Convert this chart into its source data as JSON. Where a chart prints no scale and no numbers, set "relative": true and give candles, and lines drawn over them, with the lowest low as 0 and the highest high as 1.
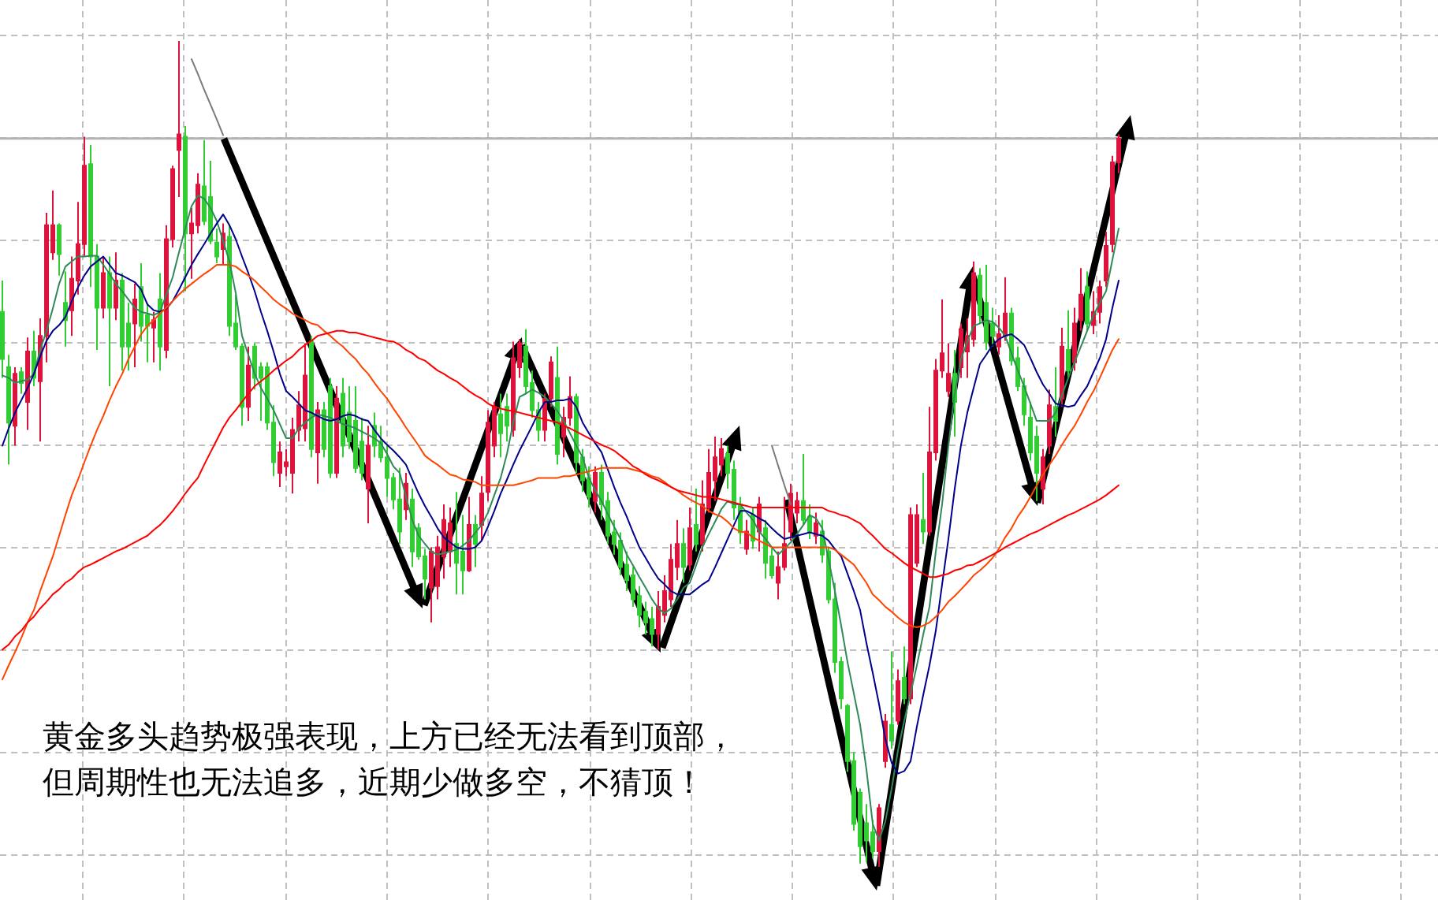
{
  "chart_data": {
    "type": "candlestick",
    "relative": true,
    "grid": true,
    "categories": [
      null,
      null,
      null,
      null,
      null,
      null,
      null,
      null,
      null,
      null,
      null,
      null,
      null,
      null,
      null,
      null,
      null,
      null,
      null,
      null,
      null,
      null,
      null,
      null,
      null,
      null,
      null,
      null,
      null,
      null,
      null,
      null,
      null,
      null,
      null,
      null,
      null,
      null,
      null,
      null,
      null,
      null,
      null,
      null,
      null,
      null,
      null,
      null,
      null,
      null,
      null,
      null,
      null,
      null,
      null,
      null,
      null,
      null,
      null,
      null,
      null,
      null,
      null,
      null,
      null,
      null,
      null,
      null,
      null,
      null,
      null,
      null,
      null,
      null,
      null,
      null,
      null,
      null,
      null,
      null,
      null,
      null,
      null,
      null,
      null,
      null,
      null,
      null,
      null,
      null,
      null,
      null,
      null,
      null,
      null,
      null,
      null,
      null,
      null,
      null,
      null,
      null,
      null,
      null,
      null,
      null,
      null,
      null,
      null,
      null,
      null,
      null,
      null,
      null,
      null,
      null,
      null,
      null,
      null,
      null,
      null,
      null,
      null,
      null,
      null,
      null,
      null,
      null,
      null,
      null,
      null,
      null,
      null,
      null,
      null,
      null,
      null,
      null,
      null,
      null,
      null,
      null,
      null,
      null,
      null,
      null,
      null,
      null,
      null,
      null,
      null,
      null,
      null,
      null,
      null,
      null,
      null,
      null,
      null,
      null,
      null,
      null,
      null,
      null,
      null,
      null,
      null,
      null,
      null,
      null,
      null,
      null,
      null,
      null,
      null,
      null,
      null,
      null
    ],
    "ohlc": [
      [
        0.672,
        0.71,
        0.592,
        0.615
      ],
      [
        0.605,
        0.62,
        0.487,
        0.538
      ],
      [
        0.534,
        0.605,
        0.51,
        0.597
      ],
      [
        0.599,
        0.605,
        0.573,
        0.586
      ],
      [
        0.563,
        0.641,
        0.529,
        0.624
      ],
      [
        0.624,
        0.649,
        0.582,
        0.592
      ],
      [
        0.588,
        0.664,
        0.515,
        0.643
      ],
      [
        0.643,
        0.792,
        0.611,
        0.777
      ],
      [
        0.744,
        0.819,
        0.735,
        0.777
      ],
      [
        0.777,
        0.779,
        0.716,
        0.742
      ],
      [
        0.683,
        0.721,
        0.63,
        0.662
      ],
      [
        0.674,
        0.739,
        0.643,
        0.712
      ],
      [
        0.71,
        0.805,
        0.693,
        0.754
      ],
      [
        0.754,
        0.884,
        0.739,
        0.849
      ],
      [
        0.851,
        0.874,
        0.702,
        0.739
      ],
      [
        0.739,
        0.754,
        0.626,
        0.677
      ],
      [
        0.677,
        0.739,
        0.664,
        0.719
      ],
      [
        0.719,
        0.739,
        0.582,
        0.677
      ],
      [
        0.677,
        0.744,
        0.662,
        0.71
      ],
      [
        0.71,
        0.719,
        0.601,
        0.63
      ],
      [
        0.658,
        0.683,
        0.601,
        0.63
      ],
      [
        0.658,
        0.706,
        0.605,
        0.687
      ],
      [
        0.702,
        0.731,
        0.636,
        0.655
      ],
      [
        0.668,
        0.683,
        0.611,
        0.655
      ],
      [
        0.653,
        0.672,
        0.611,
        0.662
      ],
      [
        0.687,
        0.719,
        0.601,
        0.63
      ],
      [
        0.626,
        0.777,
        0.616,
        0.76
      ],
      [
        0.76,
        0.849,
        0.75,
        0.845
      ],
      [
        0.868,
        1.0,
        0.811,
        0.887
      ],
      [
        0.884,
        0.897,
        0.697,
        0.767
      ],
      [
        0.767,
        0.798,
        0.712,
        0.779
      ],
      [
        0.777,
        0.84,
        0.767,
        0.826
      ],
      [
        0.824,
        0.88,
        0.777,
        0.782
      ],
      [
        0.811,
        0.855,
        0.754,
        0.758
      ],
      [
        0.756,
        0.773,
        0.731,
        0.739
      ],
      [
        0.748,
        0.779,
        0.729,
        0.767
      ],
      [
        0.763,
        0.777,
        0.643,
        0.655
      ],
      [
        0.658,
        0.693,
        0.626,
        0.63
      ],
      [
        0.63,
        0.634,
        0.534,
        0.557
      ],
      [
        0.557,
        0.63,
        0.54,
        0.607
      ],
      [
        0.63,
        0.634,
        0.578,
        0.592
      ],
      [
        0.605,
        0.611,
        0.54,
        0.592
      ],
      [
        0.605,
        0.611,
        0.529,
        0.538
      ],
      [
        0.538,
        0.559,
        0.473,
        0.49
      ],
      [
        0.477,
        0.515,
        0.46,
        0.502
      ],
      [
        0.485,
        0.506,
        0.473,
        0.49
      ],
      [
        0.477,
        0.544,
        0.452,
        0.529
      ],
      [
        0.529,
        0.576,
        0.515,
        0.559
      ],
      [
        0.531,
        0.634,
        0.515,
        0.595
      ],
      [
        0.636,
        0.643,
        0.496,
        0.506
      ],
      [
        0.502,
        0.563,
        0.464,
        0.553
      ],
      [
        0.553,
        0.563,
        0.496,
        0.506
      ],
      [
        0.582,
        0.592,
        0.471,
        0.477
      ],
      [
        0.477,
        0.582,
        0.471,
        0.567
      ],
      [
        0.573,
        0.592,
        0.496,
        0.51
      ],
      [
        0.55,
        0.582,
        0.506,
        0.515
      ],
      [
        0.54,
        0.582,
        0.477,
        0.483
      ],
      [
        0.515,
        0.544,
        0.468,
        0.477
      ],
      [
        0.458,
        0.534,
        0.416,
        0.51
      ],
      [
        0.534,
        0.55,
        0.496,
        0.51
      ],
      [
        0.515,
        0.534,
        0.49,
        0.496
      ],
      [
        0.496,
        0.51,
        0.448,
        0.471
      ],
      [
        0.471,
        0.477,
        0.433,
        0.445
      ],
      [
        0.445,
        0.483,
        0.391,
        0.406
      ],
      [
        0.433,
        0.477,
        0.42,
        0.464
      ],
      [
        0.445,
        0.458,
        0.363,
        0.382
      ],
      [
        0.41,
        0.416,
        0.372,
        0.376
      ],
      [
        0.376,
        0.385,
        0.324,
        0.349
      ],
      [
        0.338,
        0.387,
        0.296,
        0.382
      ],
      [
        0.34,
        0.401,
        0.324,
        0.387
      ],
      [
        0.376,
        0.439,
        0.349,
        0.42
      ],
      [
        0.382,
        0.435,
        0.363,
        0.416
      ],
      [
        0.391,
        0.454,
        0.33,
        0.368
      ],
      [
        0.382,
        0.426,
        0.33,
        0.359
      ],
      [
        0.359,
        0.448,
        0.357,
        0.414
      ],
      [
        0.414,
        0.426,
        0.363,
        0.391
      ],
      [
        0.414,
        0.473,
        0.395,
        0.452
      ],
      [
        0.454,
        0.553,
        0.443,
        0.538
      ],
      [
        0.51,
        0.563,
        0.496,
        0.557
      ],
      [
        0.548,
        0.573,
        0.496,
        0.525
      ],
      [
        0.557,
        0.573,
        0.515,
        0.534
      ],
      [
        0.529,
        0.636,
        0.521,
        0.616
      ],
      [
        0.605,
        0.639,
        0.592,
        0.634
      ],
      [
        0.63,
        0.651,
        0.573,
        0.582
      ],
      [
        0.586,
        0.601,
        0.544,
        0.553
      ],
      [
        0.553,
        0.563,
        0.515,
        0.529
      ],
      [
        0.529,
        0.573,
        0.515,
        0.567
      ],
      [
        0.567,
        0.618,
        0.557,
        0.611
      ],
      [
        0.592,
        0.63,
        0.487,
        0.5
      ],
      [
        0.521,
        0.557,
        0.496,
        0.544
      ],
      [
        0.544,
        0.594,
        0.534,
        0.569
      ],
      [
        0.569,
        0.573,
        0.477,
        0.49
      ],
      [
        0.496,
        0.506,
        0.454,
        0.468
      ],
      [
        0.471,
        0.485,
        0.435,
        0.448
      ],
      [
        0.443,
        0.485,
        0.429,
        0.477
      ],
      [
        0.477,
        0.487,
        0.42,
        0.439
      ],
      [
        0.443,
        0.454,
        0.391,
        0.401
      ],
      [
        0.405,
        0.42,
        0.378,
        0.391
      ],
      [
        0.395,
        0.405,
        0.353,
        0.363
      ],
      [
        0.366,
        0.382,
        0.334,
        0.347
      ],
      [
        0.353,
        0.363,
        0.315,
        0.324
      ],
      [
        0.328,
        0.34,
        0.29,
        0.305
      ],
      [
        0.309,
        0.321,
        0.281,
        0.296
      ],
      [
        0.3,
        0.315,
        0.267,
        0.282
      ],
      [
        0.282,
        0.334,
        0.263,
        0.315
      ],
      [
        0.305,
        0.353,
        0.296,
        0.334
      ],
      [
        0.324,
        0.391,
        0.315,
        0.372
      ],
      [
        0.363,
        0.42,
        0.347,
        0.391
      ],
      [
        0.391,
        0.41,
        0.344,
        0.363
      ],
      [
        0.366,
        0.435,
        0.359,
        0.41
      ],
      [
        0.414,
        0.458,
        0.382,
        0.391
      ],
      [
        0.391,
        0.468,
        0.382,
        0.439
      ],
      [
        0.435,
        0.506,
        0.429,
        0.477
      ],
      [
        0.468,
        0.521,
        0.443,
        0.496
      ],
      [
        0.487,
        0.519,
        0.473,
        0.506
      ],
      [
        0.5,
        0.51,
        0.458,
        0.477
      ],
      [
        0.481,
        0.492,
        0.42,
        0.435
      ],
      [
        0.439,
        0.448,
        0.391,
        0.405
      ],
      [
        0.385,
        0.42,
        0.378,
        0.406
      ],
      [
        0.426,
        0.435,
        0.385,
        0.395
      ],
      [
        0.406,
        0.448,
        0.382,
        0.439
      ],
      [
        0.41,
        0.42,
        0.349,
        0.368
      ],
      [
        0.376,
        0.387,
        0.349,
        0.353
      ],
      [
        0.344,
        0.382,
        0.324,
        0.363
      ],
      [
        0.363,
        0.448,
        0.359,
        0.391
      ],
      [
        0.406,
        0.464,
        0.395,
        0.452
      ],
      [
        0.429,
        0.454,
        0.416,
        0.443
      ],
      [
        0.443,
        0.5,
        0.414,
        0.42
      ],
      [
        0.424,
        0.439,
        0.397,
        0.406
      ],
      [
        0.401,
        0.429,
        0.391,
        0.416
      ],
      [
        0.406,
        0.42,
        0.368,
        0.378
      ],
      [
        0.382,
        0.387,
        0.319,
        0.324
      ],
      [
        0.324,
        0.344,
        0.235,
        0.248
      ],
      [
        0.248,
        0.254,
        0.191,
        0.204
      ],
      [
        0.195,
        0.197,
        0.115,
        0.128
      ],
      [
        0.128,
        0.139,
        0.044,
        0.052
      ],
      [
        0.09,
        0.095,
        0.004,
        0.025
      ],
      [
        0.053,
        0.076,
        0.006,
        0.032
      ],
      [
        0.042,
        0.057,
        0.01,
        0.019
      ],
      [
        0.019,
        0.076,
        0.0,
        0.071
      ],
      [
        0.128,
        0.185,
        0.12,
        0.176
      ],
      [
        0.172,
        0.261,
        0.143,
        0.153
      ],
      [
        0.177,
        0.239,
        0.172,
        0.225
      ],
      [
        0.229,
        0.267,
        0.197,
        0.204
      ],
      [
        0.204,
        0.435,
        0.197,
        0.426
      ],
      [
        0.368,
        0.439,
        0.363,
        0.426
      ],
      [
        0.42,
        0.477,
        0.391,
        0.406
      ],
      [
        0.406,
        0.557,
        0.401,
        0.502
      ],
      [
        0.502,
        0.615,
        0.492,
        0.601
      ],
      [
        0.601,
        0.687,
        0.592,
        0.622
      ],
      [
        0.576,
        0.634,
        0.569,
        0.597
      ],
      [
        0.597,
        0.626,
        0.521,
        0.563
      ],
      [
        0.605,
        0.658,
        0.592,
        0.651
      ],
      [
        0.624,
        0.664,
        0.592,
        0.643
      ],
      [
        0.639,
        0.733,
        0.63,
        0.719
      ],
      [
        0.716,
        0.725,
        0.658,
        0.668
      ],
      [
        0.683,
        0.729,
        0.626,
        0.636
      ],
      [
        0.658,
        0.677,
        0.63,
        0.643
      ],
      [
        0.63,
        0.668,
        0.62,
        0.645
      ],
      [
        0.643,
        0.714,
        0.637,
        0.67
      ],
      [
        0.67,
        0.677,
        0.607,
        0.613
      ],
      [
        0.616,
        0.63,
        0.576,
        0.582
      ],
      [
        0.582,
        0.592,
        0.534,
        0.548
      ],
      [
        0.544,
        0.563,
        0.492,
        0.502
      ],
      [
        0.521,
        0.534,
        0.443,
        0.477
      ],
      [
        0.458,
        0.506,
        0.439,
        0.496
      ],
      [
        0.51,
        0.578,
        0.5,
        0.559
      ],
      [
        0.557,
        0.605,
        0.521,
        0.54
      ],
      [
        0.567,
        0.653,
        0.557,
        0.63
      ],
      [
        0.626,
        0.674,
        0.592,
        0.601
      ],
      [
        0.611,
        0.677,
        0.601,
        0.658
      ],
      [
        0.662,
        0.725,
        0.649,
        0.693
      ],
      [
        0.702,
        0.721,
        0.649,
        0.658
      ],
      [
        0.656,
        0.697,
        0.645,
        0.672
      ],
      [
        0.672,
        0.71,
        0.658,
        0.702
      ],
      [
        0.71,
        0.769,
        0.702,
        0.752
      ],
      [
        0.754,
        0.861,
        0.744,
        0.853
      ],
      [
        0.853,
        0.887,
        0.84,
        0.882
      ]
    ],
    "colors": [
      "#32cd32",
      "#32cd32",
      "#dc143c",
      "#32cd32",
      "#dc143c",
      "#32cd32",
      "#dc143c",
      "#dc143c",
      "#dc143c",
      "#32cd32",
      "#32cd32",
      "#dc143c",
      "#dc143c",
      "#dc143c",
      "#32cd32",
      "#32cd32",
      "#dc143c",
      "#32cd32",
      "#dc143c",
      "#32cd32",
      "#32cd32",
      "#dc143c",
      "#32cd32",
      "#32cd32",
      "#dc143c",
      "#32cd32",
      "#dc143c",
      "#dc143c",
      "#dc143c",
      "#32cd32",
      "#dc143c",
      "#dc143c",
      "#32cd32",
      "#32cd32",
      "#32cd32",
      "#dc143c",
      "#32cd32",
      "#32cd32",
      "#32cd32",
      "#dc143c",
      "#32cd32",
      "#32cd32",
      "#32cd32",
      "#32cd32",
      "#dc143c",
      "#dc143c",
      "#dc143c",
      "#dc143c",
      "#dc143c",
      "#32cd32",
      "#dc143c",
      "#32cd32",
      "#32cd32",
      "#dc143c",
      "#32cd32",
      "#32cd32",
      "#32cd32",
      "#32cd32",
      "#dc143c",
      "#32cd32",
      "#32cd32",
      "#32cd32",
      "#32cd32",
      "#32cd32",
      "#dc143c",
      "#32cd32",
      "#32cd32",
      "#32cd32",
      "#dc143c",
      "#dc143c",
      "#dc143c",
      "#dc143c",
      "#32cd32",
      "#32cd32",
      "#dc143c",
      "#32cd32",
      "#dc143c",
      "#dc143c",
      "#dc143c",
      "#32cd32",
      "#32cd32",
      "#dc143c",
      "#dc143c",
      "#32cd32",
      "#32cd32",
      "#32cd32",
      "#dc143c",
      "#dc143c",
      "#32cd32",
      "#dc143c",
      "#dc143c",
      "#32cd32",
      "#32cd32",
      "#32cd32",
      "#dc143c",
      "#32cd32",
      "#32cd32",
      "#32cd32",
      "#32cd32",
      "#32cd32",
      "#32cd32",
      "#32cd32",
      "#32cd32",
      "#32cd32",
      "#dc143c",
      "#dc143c",
      "#dc143c",
      "#dc143c",
      "#32cd32",
      "#dc143c",
      "#32cd32",
      "#dc143c",
      "#dc143c",
      "#dc143c",
      "#dc143c",
      "#32cd32",
      "#32cd32",
      "#32cd32",
      "#dc143c",
      "#32cd32",
      "#dc143c",
      "#32cd32",
      "#32cd32",
      "#dc143c",
      "#dc143c",
      "#dc143c",
      "#dc143c",
      "#32cd32",
      "#32cd32",
      "#dc143c",
      "#32cd32",
      "#32cd32",
      "#32cd32",
      "#32cd32",
      "#32cd32",
      "#32cd32",
      "#32cd32",
      "#32cd32",
      "#32cd32",
      "#dc143c",
      "#dc143c",
      "#32cd32",
      "#dc143c",
      "#32cd32",
      "#dc143c",
      "#dc143c",
      "#32cd32",
      "#dc143c",
      "#dc143c",
      "#dc143c",
      "#dc143c",
      "#32cd32",
      "#dc143c",
      "#dc143c",
      "#dc143c",
      "#32cd32",
      "#32cd32",
      "#32cd32",
      "#dc143c",
      "#dc143c",
      "#32cd32",
      "#32cd32",
      "#32cd32",
      "#32cd32",
      "#32cd32",
      "#dc143c",
      "#dc143c",
      "#32cd32",
      "#dc143c",
      "#32cd32",
      "#dc143c",
      "#dc143c",
      "#32cd32",
      "#dc143c",
      "#dc143c",
      "#dc143c",
      "#dc143c",
      "#dc143c"
    ],
    "series": [
      {
        "type": "line",
        "color": "#2e8b57",
        "values": [
          0.595,
          0.592,
          0.586,
          0.588,
          0.59,
          0.597,
          0.626,
          0.649,
          0.676,
          0.706,
          0.727,
          0.733,
          0.739,
          0.739,
          0.74,
          0.74,
          0.729,
          0.718,
          0.706,
          0.697,
          0.687,
          0.677,
          0.672,
          0.67,
          0.668,
          0.672,
          0.693,
          0.714,
          0.744,
          0.773,
          0.8,
          0.813,
          0.809,
          0.798,
          0.782,
          0.758,
          0.733,
          0.695,
          0.643,
          0.62,
          0.597,
          0.58,
          0.567,
          0.553,
          0.536,
          0.519,
          0.519,
          0.531,
          0.538,
          0.544,
          0.548,
          0.546,
          0.544,
          0.54,
          0.536,
          0.534,
          0.531,
          0.527,
          0.523,
          0.519,
          0.513,
          0.5,
          0.485,
          0.477,
          0.448,
          0.42,
          0.401,
          0.391,
          0.382,
          0.378,
          0.38,
          0.382,
          0.384,
          0.389,
          0.395,
          0.405,
          0.414,
          0.429,
          0.45,
          0.471,
          0.5,
          0.538,
          0.569,
          0.573,
          0.578,
          0.574,
          0.569,
          0.561,
          0.552,
          0.54,
          0.525,
          0.51,
          0.496,
          0.471,
          0.456,
          0.443,
          0.427,
          0.412,
          0.397,
          0.378,
          0.365,
          0.351,
          0.338,
          0.324,
          0.313,
          0.307,
          0.313,
          0.324,
          0.338,
          0.344,
          0.365,
          0.387,
          0.403,
          0.418,
          0.433,
          0.443,
          0.439,
          0.439,
          0.429,
          0.42,
          0.406,
          0.397,
          0.387,
          0.378,
          0.385,
          0.393,
          0.403,
          0.414,
          0.426,
          0.422,
          0.41,
          0.372,
          0.334,
          0.292,
          0.248,
          0.21,
          0.172,
          0.118,
          0.052,
          0.032,
          0.055,
          0.095,
          0.141,
          0.177,
          0.21,
          0.244,
          0.281,
          0.315,
          0.382,
          0.439,
          0.51,
          0.573,
          0.615,
          0.636,
          0.655,
          0.658,
          0.662,
          0.66,
          0.653,
          0.643,
          0.622,
          0.601,
          0.582,
          0.561,
          0.54,
          0.54,
          0.54,
          0.55,
          0.571,
          0.592,
          0.611,
          0.63,
          0.649,
          0.668,
          0.683,
          0.697,
          0.735,
          0.773
        ]
      },
      {
        "type": "line",
        "color": "#00008b",
        "values": [
          0.51,
          0.531,
          0.55,
          0.565,
          0.58,
          0.597,
          0.618,
          0.637,
          0.649,
          0.656,
          0.666,
          0.685,
          0.702,
          0.716,
          0.727,
          0.733,
          0.739,
          0.729,
          0.719,
          0.716,
          0.712,
          0.708,
          0.699,
          0.681,
          0.674,
          0.672,
          0.676,
          0.685,
          0.699,
          0.714,
          0.729,
          0.742,
          0.754,
          0.767,
          0.779,
          0.79,
          0.777,
          0.76,
          0.739,
          0.719,
          0.697,
          0.672,
          0.649,
          0.624,
          0.597,
          0.576,
          0.569,
          0.561,
          0.553,
          0.55,
          0.546,
          0.542,
          0.54,
          0.542,
          0.546,
          0.548,
          0.546,
          0.542,
          0.54,
          0.529,
          0.519,
          0.511,
          0.504,
          0.496,
          0.487,
          0.469,
          0.452,
          0.437,
          0.424,
          0.41,
          0.399,
          0.393,
          0.387,
          0.385,
          0.385,
          0.387,
          0.395,
          0.412,
          0.431,
          0.452,
          0.469,
          0.487,
          0.504,
          0.519,
          0.534,
          0.55,
          0.563,
          0.563,
          0.565,
          0.565,
          0.567,
          0.557,
          0.538,
          0.525,
          0.513,
          0.502,
          0.481,
          0.46,
          0.441,
          0.424,
          0.405,
          0.387,
          0.374,
          0.361,
          0.349,
          0.342,
          0.334,
          0.33,
          0.33,
          0.33,
          0.336,
          0.342,
          0.347,
          0.363,
          0.38,
          0.397,
          0.414,
          0.431,
          0.431,
          0.427,
          0.422,
          0.418,
          0.41,
          0.403,
          0.397,
          0.399,
          0.401,
          0.403,
          0.405,
          0.403,
          0.401,
          0.395,
          0.385,
          0.376,
          0.355,
          0.334,
          0.311,
          0.271,
          0.235,
          0.197,
          0.155,
          0.126,
          0.113,
          0.116,
          0.128,
          0.17,
          0.208,
          0.244,
          0.286,
          0.342,
          0.397,
          0.458,
          0.511,
          0.55,
          0.58,
          0.609,
          0.62,
          0.632,
          0.639,
          0.643,
          0.645,
          0.639,
          0.632,
          0.616,
          0.599,
          0.584,
          0.573,
          0.561,
          0.559,
          0.557,
          0.559,
          0.571,
          0.582,
          0.599,
          0.616,
          0.639,
          0.677,
          0.71
        ]
      },
      {
        "type": "line",
        "color": "#ff4500",
        "values": [
          0.227,
          0.244,
          0.26,
          0.277,
          0.296,
          0.311,
          0.334,
          0.355,
          0.376,
          0.401,
          0.426,
          0.45,
          0.469,
          0.49,
          0.51,
          0.529,
          0.546,
          0.565,
          0.582,
          0.597,
          0.615,
          0.63,
          0.645,
          0.655,
          0.662,
          0.67,
          0.677,
          0.685,
          0.693,
          0.7,
          0.706,
          0.712,
          0.718,
          0.723,
          0.729,
          0.729,
          0.729,
          0.727,
          0.721,
          0.716,
          0.71,
          0.702,
          0.695,
          0.687,
          0.681,
          0.676,
          0.67,
          0.666,
          0.662,
          0.658,
          0.656,
          0.649,
          0.643,
          0.636,
          0.63,
          0.622,
          0.615,
          0.605,
          0.597,
          0.586,
          0.576,
          0.567,
          0.555,
          0.544,
          0.532,
          0.521,
          0.51,
          0.498,
          0.492,
          0.487,
          0.481,
          0.475,
          0.473,
          0.469,
          0.468,
          0.466,
          0.462,
          0.462,
          0.462,
          0.462,
          0.462,
          0.462,
          0.464,
          0.466,
          0.468,
          0.471,
          0.471,
          0.471,
          0.471,
          0.473,
          0.473,
          0.475,
          0.477,
          0.479,
          0.481,
          0.483,
          0.483,
          0.483,
          0.483,
          0.483,
          0.481,
          0.479,
          0.477,
          0.473,
          0.471,
          0.466,
          0.46,
          0.456,
          0.45,
          0.445,
          0.441,
          0.437,
          0.431,
          0.427,
          0.424,
          0.418,
          0.41,
          0.406,
          0.405,
          0.399,
          0.395,
          0.391,
          0.387,
          0.387,
          0.387,
          0.387,
          0.387,
          0.387,
          0.387,
          0.387,
          0.387,
          0.387,
          0.384,
          0.378,
          0.372,
          0.366,
          0.355,
          0.344,
          0.33,
          0.323,
          0.315,
          0.309,
          0.302,
          0.296,
          0.292,
          0.29,
          0.292,
          0.296,
          0.303,
          0.311,
          0.321,
          0.328,
          0.336,
          0.344,
          0.353,
          0.359,
          0.366,
          0.374,
          0.385,
          0.399,
          0.41,
          0.424,
          0.435,
          0.448,
          0.462,
          0.475,
          0.487,
          0.498,
          0.511,
          0.523,
          0.534,
          0.548,
          0.563,
          0.576,
          0.592,
          0.609,
          0.626,
          0.639
        ]
      },
      {
        "type": "line",
        "color": "#ff0000",
        "values": [
          0.263,
          0.269,
          0.279,
          0.286,
          0.296,
          0.303,
          0.313,
          0.321,
          0.33,
          0.336,
          0.344,
          0.349,
          0.357,
          0.363,
          0.366,
          0.37,
          0.374,
          0.378,
          0.382,
          0.385,
          0.389,
          0.393,
          0.397,
          0.401,
          0.408,
          0.414,
          0.422,
          0.431,
          0.441,
          0.452,
          0.462,
          0.471,
          0.487,
          0.502,
          0.517,
          0.532,
          0.544,
          0.553,
          0.563,
          0.573,
          0.582,
          0.588,
          0.594,
          0.601,
          0.607,
          0.613,
          0.618,
          0.626,
          0.632,
          0.637,
          0.643,
          0.645,
          0.647,
          0.649,
          0.649,
          0.647,
          0.647,
          0.645,
          0.643,
          0.641,
          0.639,
          0.637,
          0.636,
          0.632,
          0.626,
          0.622,
          0.616,
          0.613,
          0.607,
          0.601,
          0.597,
          0.592,
          0.588,
          0.582,
          0.576,
          0.571,
          0.567,
          0.561,
          0.557,
          0.555,
          0.553,
          0.552,
          0.55,
          0.548,
          0.546,
          0.544,
          0.542,
          0.54,
          0.538,
          0.534,
          0.531,
          0.527,
          0.523,
          0.519,
          0.515,
          0.511,
          0.508,
          0.504,
          0.498,
          0.492,
          0.485,
          0.481,
          0.475,
          0.471,
          0.468,
          0.464,
          0.46,
          0.456,
          0.454,
          0.452,
          0.45,
          0.448,
          0.448,
          0.447,
          0.445,
          0.443,
          0.441,
          0.439,
          0.437,
          0.435,
          0.435,
          0.435,
          0.435,
          0.435,
          0.435,
          0.435,
          0.435,
          0.435,
          0.435,
          0.435,
          0.435,
          0.431,
          0.429,
          0.426,
          0.424,
          0.42,
          0.416,
          0.408,
          0.401,
          0.393,
          0.385,
          0.38,
          0.374,
          0.368,
          0.363,
          0.359,
          0.355,
          0.351,
          0.351,
          0.353,
          0.355,
          0.359,
          0.361,
          0.365,
          0.366,
          0.37,
          0.374,
          0.378,
          0.382,
          0.387,
          0.391,
          0.395,
          0.399,
          0.403,
          0.406,
          0.41,
          0.414,
          0.418,
          0.422,
          0.426,
          0.429,
          0.433,
          0.437,
          0.441,
          0.445,
          0.45,
          0.456,
          0.462
        ]
      },
      {
        "type": "line",
        "color": "#7a7a7a",
        "values": [
          null,
          null,
          null,
          null,
          null,
          null,
          null,
          null,
          null,
          null,
          null,
          null,
          null,
          null,
          null,
          null,
          null,
          null,
          null,
          null,
          null,
          null,
          null,
          null,
          null,
          null,
          null,
          null,
          null,
          null,
          0.978,
          0.96,
          0.941,
          0.923,
          0.905,
          0.886,
          null,
          null,
          null,
          null,
          null,
          null,
          null,
          null,
          null,
          null,
          null,
          null,
          null,
          null,
          null,
          null,
          null,
          null,
          null,
          null,
          null,
          null,
          null,
          null,
          null,
          null,
          null,
          null,
          null,
          null,
          null,
          null,
          null,
          null,
          null,
          null,
          null,
          null,
          null,
          null,
          null,
          null,
          null,
          null,
          null,
          null,
          null,
          null,
          null,
          null,
          null,
          null,
          null,
          null,
          null,
          null,
          null,
          null,
          null,
          null,
          null,
          null,
          null,
          null,
          null,
          null,
          null,
          null,
          null,
          null,
          null,
          null,
          null,
          null,
          null,
          null,
          null,
          null,
          null,
          null,
          null,
          null,
          null,
          null,
          null,
          null,
          null,
          null,
          null,
          null,
          null,
          null,
          null,
          null,
          null,
          null,
          null,
          null,
          null,
          null,
          null,
          null,
          null,
          null,
          null,
          null,
          null,
          null,
          null,
          null,
          null,
          null,
          null,
          null,
          null,
          null,
          null,
          null,
          null,
          null,
          null,
          null,
          null,
          null,
          null,
          null,
          null,
          null,
          null,
          null,
          null,
          null,
          null,
          null,
          null,
          null,
          null,
          null,
          null,
          null,
          null,
          null
        ]
      },
      {
        "type": "line",
        "color": "#7a7a7a",
        "values": [
          null,
          null,
          null,
          null,
          null,
          null,
          null,
          null,
          null,
          null,
          null,
          null,
          null,
          null,
          null,
          null,
          null,
          null,
          null,
          null,
          null,
          null,
          null,
          null,
          null,
          null,
          null,
          null,
          null,
          null,
          null,
          null,
          null,
          null,
          null,
          null,
          null,
          null,
          null,
          null,
          null,
          null,
          null,
          null,
          null,
          null,
          null,
          null,
          null,
          null,
          null,
          null,
          null,
          null,
          null,
          null,
          null,
          null,
          null,
          null,
          null,
          null,
          null,
          null,
          null,
          null,
          null,
          null,
          null,
          null,
          null,
          null,
          null,
          null,
          null,
          null,
          null,
          null,
          null,
          null,
          null,
          null,
          null,
          null,
          null,
          null,
          null,
          null,
          null,
          null,
          null,
          null,
          null,
          null,
          null,
          null,
          null,
          null,
          null,
          null,
          null,
          null,
          null,
          null,
          null,
          null,
          null,
          null,
          null,
          null,
          null,
          null,
          null,
          null,
          null,
          null,
          null,
          null,
          null,
          null,
          null,
          null,
          0.51,
          0.486,
          0.462,
          0.439,
          null,
          null,
          null,
          null,
          null,
          null,
          null,
          null,
          null,
          null,
          null,
          null,
          null,
          null,
          null,
          null,
          null,
          null,
          null,
          null,
          null,
          null,
          null,
          null,
          null,
          null,
          null,
          null,
          null,
          null,
          null,
          null,
          null,
          null,
          null,
          null,
          null,
          null,
          null,
          null,
          null,
          null,
          null,
          null,
          null,
          null,
          null,
          null,
          null,
          null,
          null,
          null
        ]
      }
    ],
    "ref_lines": [
      {
        "axis": "y",
        "value": 0.882,
        "color": "#b4b4b4"
      }
    ],
    "annotations": [
      "黄金多头趋势极强表现，上方已经无法看到顶部，",
      "但周期性也无法追多，近期少做多空，不猜顶！"
    ]
  }
}
